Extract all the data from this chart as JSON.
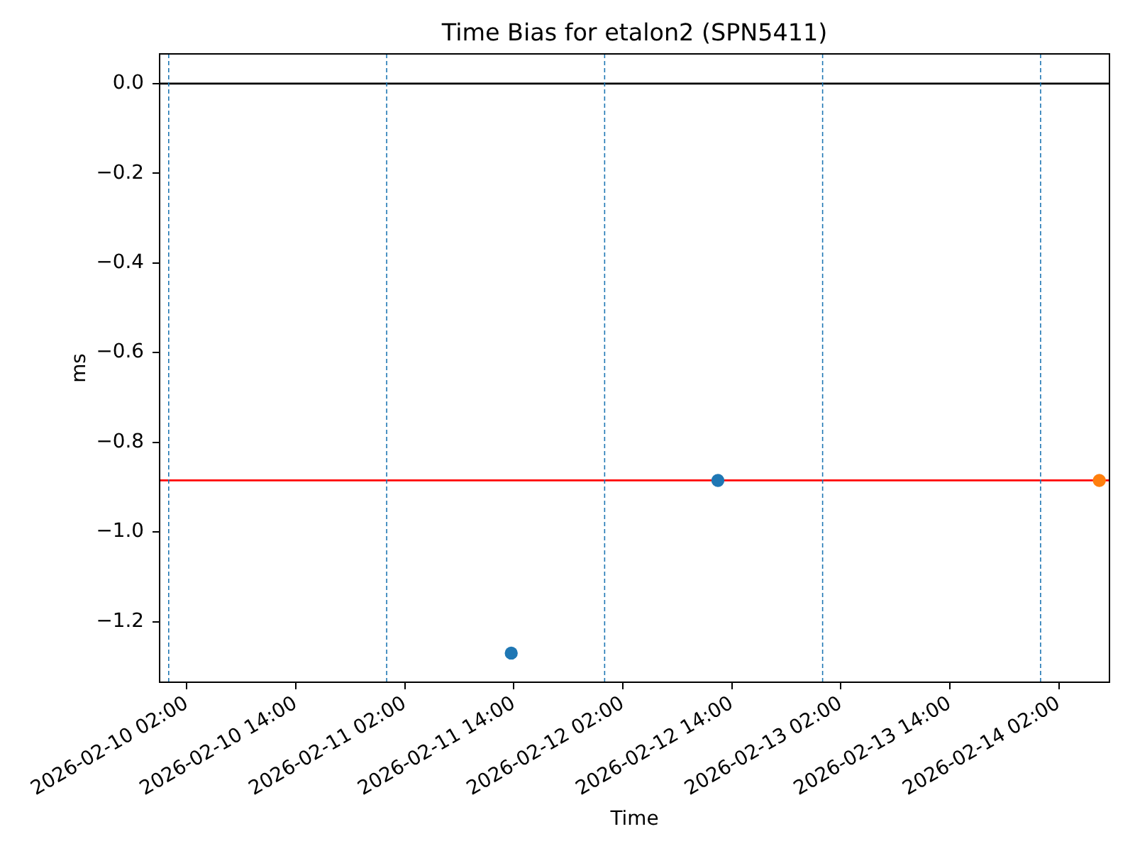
{
  "chart_data": {
    "type": "scatter",
    "title": "Time Bias for etalon2 (SPN5411)",
    "xlabel": "Time",
    "ylabel": "ms",
    "xlim": [
      "2026-02-09T23:00",
      "2026-02-14T07:35"
    ],
    "xticks": [
      {
        "value": "2026-02-10T02:00",
        "label": "2026-02-10 02:00"
      },
      {
        "value": "2026-02-10T14:00",
        "label": "2026-02-10 14:00"
      },
      {
        "value": "2026-02-11T02:00",
        "label": "2026-02-11 02:00"
      },
      {
        "value": "2026-02-11T14:00",
        "label": "2026-02-11 14:00"
      },
      {
        "value": "2026-02-12T02:00",
        "label": "2026-02-12 02:00"
      },
      {
        "value": "2026-02-12T14:00",
        "label": "2026-02-12 14:00"
      },
      {
        "value": "2026-02-13T02:00",
        "label": "2026-02-13 02:00"
      },
      {
        "value": "2026-02-13T14:00",
        "label": "2026-02-13 14:00"
      },
      {
        "value": "2026-02-14T02:00",
        "label": "2026-02-14 02:00"
      }
    ],
    "ylim": [
      -1.335,
      0.066
    ],
    "yticks": [
      {
        "value": 0,
        "label": "0.0"
      },
      {
        "value": -0.2,
        "label": "−0.2"
      },
      {
        "value": -0.4,
        "label": "−0.4"
      },
      {
        "value": -0.6,
        "label": "−0.6"
      },
      {
        "value": -0.8,
        "label": "−0.8"
      },
      {
        "value": -1.0,
        "label": "−1.0"
      },
      {
        "value": -1.2,
        "label": "−1.2"
      }
    ],
    "series": [
      {
        "color": "#1f77b4",
        "x": [
          "2026-02-11T13:43",
          "2026-02-12T12:28"
        ],
        "values": [
          -1.27,
          -0.885
        ]
      },
      {
        "color": "#ff7f0e",
        "x": [
          "2026-02-14T06:28"
        ],
        "values": [
          -0.885
        ]
      }
    ],
    "ref_lines": [
      {
        "axis": "y",
        "value": 0,
        "color": "#000000"
      },
      {
        "axis": "y",
        "value": -0.885,
        "color": "#ff0000"
      },
      {
        "axis": "x",
        "value": "2026-02-10",
        "color": "#1f77b4",
        "line_style": "dashed"
      },
      {
        "axis": "x",
        "value": "2026-02-11",
        "color": "#1f77b4",
        "line_style": "dashed"
      },
      {
        "axis": "x",
        "value": "2026-02-12",
        "color": "#1f77b4",
        "line_style": "dashed"
      },
      {
        "axis": "x",
        "value": "2026-02-13",
        "color": "#1f77b4",
        "line_style": "dashed"
      },
      {
        "axis": "x",
        "value": "2026-02-14",
        "color": "#1f77b4",
        "line_style": "dashed"
      }
    ],
    "marker": "circle",
    "legend": false
  }
}
